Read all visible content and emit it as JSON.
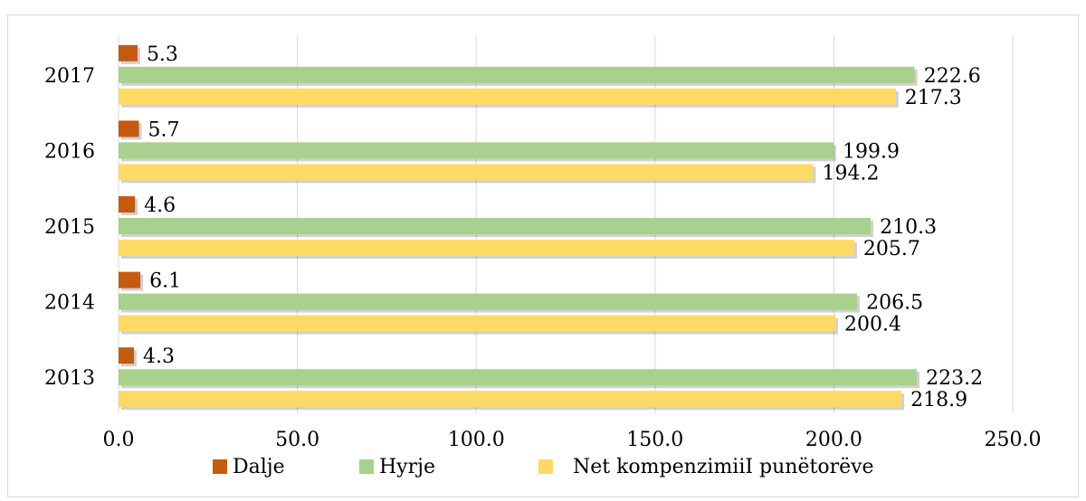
{
  "caption": "",
  "colors": {
    "dalje": "#C55A11",
    "hyrje": "#A9D18E",
    "net": "#FFD966",
    "grid": "#D9D9D9",
    "caption": "#2E75B6"
  },
  "chart_data": {
    "type": "bar",
    "orientation": "horizontal",
    "categories": [
      "2017",
      "2016",
      "2015",
      "2014",
      "2013"
    ],
    "series": [
      {
        "name": "Dalje",
        "values": [
          5.3,
          5.7,
          4.6,
          6.1,
          4.3
        ]
      },
      {
        "name": "Hyrje",
        "values": [
          222.6,
          199.9,
          210.3,
          206.5,
          223.2
        ]
      },
      {
        "name": "Net kompenzimiiI punëtorëve",
        "values": [
          217.3,
          194.2,
          205.7,
          200.4,
          218.9
        ]
      }
    ],
    "xlim": [
      0,
      250
    ],
    "x_ticks": [
      "0.0",
      "50.0",
      "100.0",
      "150.0",
      "200.0",
      "250.0"
    ],
    "data_labels": [
      [
        "5.3",
        "5.7",
        "4.6",
        "6.1",
        "4.3"
      ],
      [
        "222.6",
        "199.9",
        "210.3",
        "206.5",
        "223.2"
      ],
      [
        "217.3",
        "194.2",
        "205.7",
        "200.4",
        "218.9"
      ]
    ],
    "grid": "vertical",
    "legend_position": "bottom",
    "title": "",
    "xlabel": "",
    "ylabel": ""
  }
}
